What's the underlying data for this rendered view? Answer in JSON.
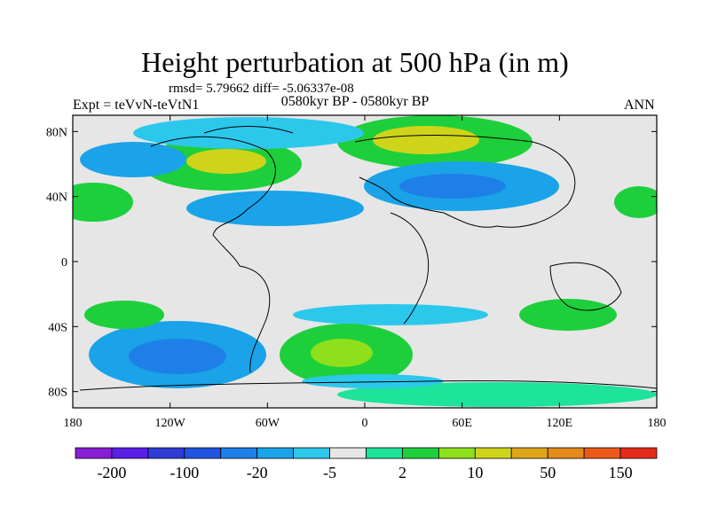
{
  "title": "Height perturbation at 500 hPa (in m)",
  "stats_line": "rmsd= 5.79662 diff= -5.06337e-08",
  "left_label": "Expt = teVvN-teVtN1",
  "center_label": "0580kyr BP - 0580kyr BP",
  "right_label": "ANN",
  "lat_ticks": [
    "80N",
    "40N",
    "0",
    "40S",
    "80S"
  ],
  "lat_values": [
    80,
    40,
    0,
    -40,
    -80
  ],
  "lon_ticks": [
    "180",
    "120W",
    "60W",
    "0",
    "60E",
    "120E",
    "180"
  ],
  "lon_values": [
    -180,
    -120,
    -60,
    0,
    60,
    120,
    180
  ],
  "lat_range": [
    -90,
    90
  ],
  "lon_range": [
    -180,
    180
  ],
  "colorbar": {
    "colors": [
      "#8a1dd6",
      "#5a1ee6",
      "#2f3bd6",
      "#1f55e0",
      "#1f7fe8",
      "#1aa3e8",
      "#2cc8ec",
      "#e6e6e6",
      "#1ee39a",
      "#1ecf3c",
      "#8ee01c",
      "#cfd41a",
      "#e0a61a",
      "#e68a1a",
      "#ec5a1a",
      "#e62a1a"
    ],
    "labels": [
      "-200",
      "-100",
      "-20",
      "-5",
      "2",
      "10",
      "50",
      "150"
    ]
  },
  "fields": [
    {
      "level": "strong-negative",
      "color": "#1f7fe8"
    },
    {
      "level": "moderate-negative",
      "color": "#1aa3e8"
    },
    {
      "level": "weak-negative",
      "color": "#2cc8ec"
    },
    {
      "level": "weak-positive",
      "color": "#1ee39a"
    },
    {
      "level": "moderate-positive",
      "color": "#1ecf3c"
    },
    {
      "level": "strong-positive",
      "color": "#cfd41a"
    }
  ]
}
